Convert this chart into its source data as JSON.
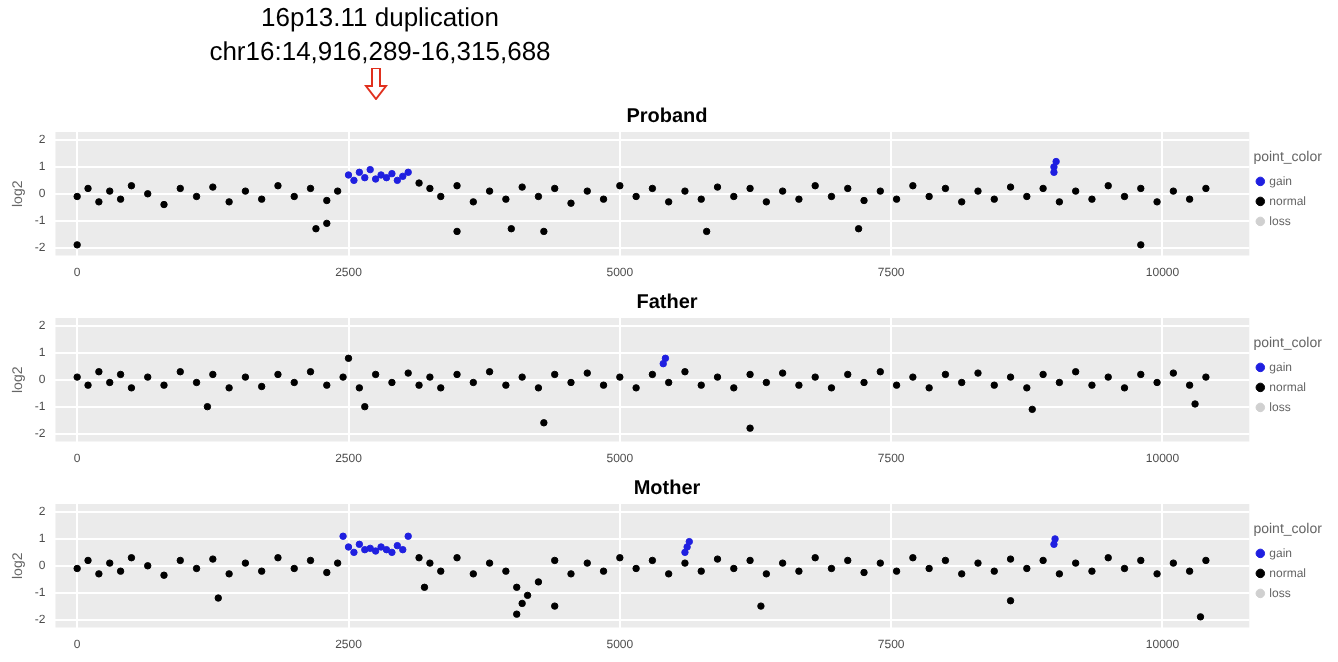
{
  "chart_data": [
    {
      "type": "scatter",
      "title": "Proband",
      "ylabel": "log2",
      "legend_title": "point_color",
      "legend": "right",
      "grid": true,
      "marker": "circle",
      "annotations": [
        "16p13.11 duplication",
        "chr16:14,916,289-16,315,688"
      ],
      "xlim": [
        -200,
        10800
      ],
      "xticks": [
        0,
        2500,
        5000,
        7500,
        10000
      ],
      "ylim": [
        -2.3,
        2.3
      ],
      "yticks": [
        -2,
        -1,
        0,
        1,
        2
      ],
      "series": [
        {
          "name": "gain",
          "color": "#1f1fe0",
          "x": [
            2500,
            2550,
            2600,
            2650,
            2700,
            2750,
            2800,
            2850,
            2900,
            2950,
            3000,
            3050,
            9000,
            9000,
            9020
          ],
          "values": [
            0.7,
            0.5,
            0.8,
            0.6,
            0.9,
            0.55,
            0.7,
            0.6,
            0.75,
            0.5,
            0.65,
            0.8,
            1.0,
            0.8,
            1.2
          ]
        },
        {
          "name": "normal",
          "color": "#000000",
          "x": [
            0,
            100,
            200,
            300,
            400,
            500,
            650,
            800,
            950,
            1100,
            1250,
            1400,
            1550,
            1700,
            1850,
            2000,
            2150,
            2300,
            2400,
            2200,
            2300,
            3150,
            3250,
            3350,
            3500,
            3650,
            3800,
            3950,
            3500,
            4000,
            4300,
            4100,
            4250,
            4400,
            4550,
            4700,
            4850,
            5000,
            5150,
            5300,
            5450,
            5600,
            5750,
            5900,
            6050,
            6200,
            6350,
            6500,
            6650,
            6800,
            6950,
            7100,
            7250,
            7400,
            7550,
            7700,
            7850,
            8000,
            8150,
            8300,
            8450,
            8600,
            8750,
            8900,
            9050,
            9200,
            9350,
            9500,
            9650,
            9800,
            9950,
            10100,
            10250,
            10400,
            9800,
            0,
            5800,
            7200
          ],
          "values": [
            -0.1,
            0.2,
            -0.3,
            0.1,
            -0.2,
            0.3,
            0,
            -0.4,
            0.2,
            -0.1,
            0.25,
            -0.3,
            0.1,
            -0.2,
            0.3,
            -0.1,
            0.2,
            -0.25,
            0.1,
            -1.3,
            -1.1,
            0.4,
            0.2,
            -0.1,
            0.3,
            -0.3,
            0.1,
            -0.2,
            -1.4,
            -1.3,
            -1.4,
            0.25,
            -0.1,
            0.2,
            -0.35,
            0.1,
            -0.2,
            0.3,
            -0.1,
            0.2,
            -0.3,
            0.1,
            -0.2,
            0.25,
            -0.1,
            0.2,
            -0.3,
            0.1,
            -0.2,
            0.3,
            -0.1,
            0.2,
            -0.25,
            0.1,
            -0.2,
            0.3,
            -0.1,
            0.2,
            -0.3,
            0.1,
            -0.2,
            0.25,
            -0.1,
            0.2,
            -0.3,
            0.1,
            -0.2,
            0.3,
            -0.1,
            0.2,
            -0.3,
            0.1,
            -0.2,
            0.2,
            -1.9,
            -1.9,
            -1.4,
            -1.3
          ]
        },
        {
          "name": "loss",
          "color": "#d0d0d0"
        }
      ]
    },
    {
      "type": "scatter",
      "title": "Father",
      "ylabel": "log2",
      "legend_title": "point_color",
      "legend": "right",
      "grid": true,
      "marker": "circle",
      "xlim": [
        -200,
        10800
      ],
      "xticks": [
        0,
        2500,
        5000,
        7500,
        10000
      ],
      "ylim": [
        -2.3,
        2.3
      ],
      "yticks": [
        -2,
        -1,
        0,
        1,
        2
      ],
      "series": [
        {
          "name": "gain",
          "color": "#1f1fe0",
          "x": [
            5400,
            5420
          ],
          "values": [
            0.6,
            0.8
          ]
        },
        {
          "name": "normal",
          "color": "#000000",
          "x": [
            0,
            100,
            200,
            300,
            400,
            500,
            650,
            800,
            950,
            1100,
            1250,
            1400,
            1550,
            1700,
            1850,
            2000,
            2150,
            2300,
            2450,
            2600,
            2750,
            2900,
            3050,
            3150,
            3250,
            3350,
            3500,
            3650,
            3800,
            3950,
            4100,
            4250,
            4400,
            4550,
            4700,
            4850,
            5000,
            5150,
            5300,
            5450,
            5600,
            5750,
            5900,
            6050,
            6200,
            6350,
            6500,
            6650,
            6800,
            6950,
            7100,
            7250,
            7400,
            7550,
            7700,
            7850,
            8000,
            8150,
            8300,
            8450,
            8600,
            8750,
            8900,
            9050,
            9200,
            9350,
            9500,
            9650,
            9800,
            9950,
            10100,
            10250,
            10400,
            2500,
            1200,
            4300,
            6200,
            8800,
            10300,
            2650
          ],
          "values": [
            0.1,
            -0.2,
            0.3,
            -0.1,
            0.2,
            -0.3,
            0.1,
            -0.2,
            0.3,
            -0.1,
            0.2,
            -0.3,
            0.1,
            -0.25,
            0.2,
            -0.1,
            0.3,
            -0.2,
            0.1,
            -0.3,
            0.2,
            -0.1,
            0.25,
            -0.2,
            0.1,
            -0.3,
            0.2,
            -0.1,
            0.3,
            -0.2,
            0.1,
            -0.3,
            0.2,
            -0.1,
            0.25,
            -0.2,
            0.1,
            -0.3,
            0.2,
            -0.1,
            0.3,
            -0.2,
            0.1,
            -0.3,
            0.2,
            -0.1,
            0.25,
            -0.2,
            0.1,
            -0.3,
            0.2,
            -0.1,
            0.3,
            -0.2,
            0.1,
            -0.3,
            0.2,
            -0.1,
            0.25,
            -0.2,
            0.1,
            -0.3,
            0.2,
            -0.1,
            0.3,
            -0.2,
            0.1,
            -0.3,
            0.2,
            -0.1,
            0.25,
            -0.2,
            0.1,
            0.8,
            -1.0,
            -1.6,
            -1.8,
            -1.1,
            -0.9,
            -1.0
          ]
        },
        {
          "name": "loss",
          "color": "#d0d0d0"
        }
      ]
    },
    {
      "type": "scatter",
      "title": "Mother",
      "ylabel": "log2",
      "legend_title": "point_color",
      "legend": "right",
      "grid": true,
      "marker": "circle",
      "xlim": [
        -200,
        10800
      ],
      "xticks": [
        0,
        2500,
        5000,
        7500,
        10000
      ],
      "ylim": [
        -2.3,
        2.3
      ],
      "yticks": [
        -2,
        -1,
        0,
        1,
        2
      ],
      "series": [
        {
          "name": "gain",
          "color": "#1f1fe0",
          "x": [
            2450,
            2500,
            2550,
            2600,
            2650,
            2700,
            2750,
            2800,
            2850,
            2900,
            2950,
            3000,
            3050,
            5600,
            5620,
            5640,
            9000,
            9010
          ],
          "values": [
            1.1,
            0.7,
            0.5,
            0.8,
            0.6,
            0.65,
            0.55,
            0.7,
            0.6,
            0.5,
            0.75,
            0.6,
            1.1,
            0.5,
            0.7,
            0.9,
            0.8,
            1.0
          ]
        },
        {
          "name": "normal",
          "color": "#000000",
          "x": [
            0,
            100,
            200,
            300,
            400,
            500,
            650,
            800,
            950,
            1100,
            1250,
            1400,
            1550,
            1700,
            1850,
            2000,
            2150,
            2300,
            2400,
            3150,
            3250,
            3350,
            3500,
            3650,
            3800,
            3950,
            4050,
            4150,
            4250,
            4400,
            4550,
            4700,
            4850,
            5000,
            5150,
            5300,
            5450,
            5600,
            5750,
            5900,
            6050,
            6200,
            6350,
            6500,
            6650,
            6800,
            6950,
            7100,
            7250,
            7400,
            7550,
            7700,
            7850,
            8000,
            8150,
            8300,
            8450,
            8600,
            8750,
            8900,
            9050,
            9200,
            9350,
            9500,
            9650,
            9800,
            9950,
            10100,
            10250,
            10400,
            4100,
            4050,
            4400,
            6300,
            8600,
            10350,
            1300,
            3200
          ],
          "values": [
            -0.1,
            0.2,
            -0.3,
            0.1,
            -0.2,
            0.3,
            0,
            -0.35,
            0.2,
            -0.1,
            0.25,
            -0.3,
            0.1,
            -0.2,
            0.3,
            -0.1,
            0.2,
            -0.25,
            0.1,
            0.3,
            0.1,
            -0.2,
            0.3,
            -0.3,
            0.1,
            -0.2,
            -0.8,
            -1.1,
            -0.6,
            0.2,
            -0.3,
            0.1,
            -0.2,
            0.3,
            -0.1,
            0.2,
            -0.3,
            0.1,
            -0.2,
            0.25,
            -0.1,
            0.2,
            -0.3,
            0.1,
            -0.2,
            0.3,
            -0.1,
            0.2,
            -0.25,
            0.1,
            -0.2,
            0.3,
            -0.1,
            0.2,
            -0.3,
            0.1,
            -0.2,
            0.25,
            -0.1,
            0.2,
            -0.3,
            0.1,
            -0.2,
            0.3,
            -0.1,
            0.2,
            -0.3,
            0.1,
            -0.2,
            0.2,
            -1.4,
            -1.8,
            -1.5,
            -1.5,
            -1.3,
            -1.9,
            -1.2,
            -0.8
          ]
        },
        {
          "name": "loss",
          "color": "#d0d0d0"
        }
      ]
    }
  ]
}
